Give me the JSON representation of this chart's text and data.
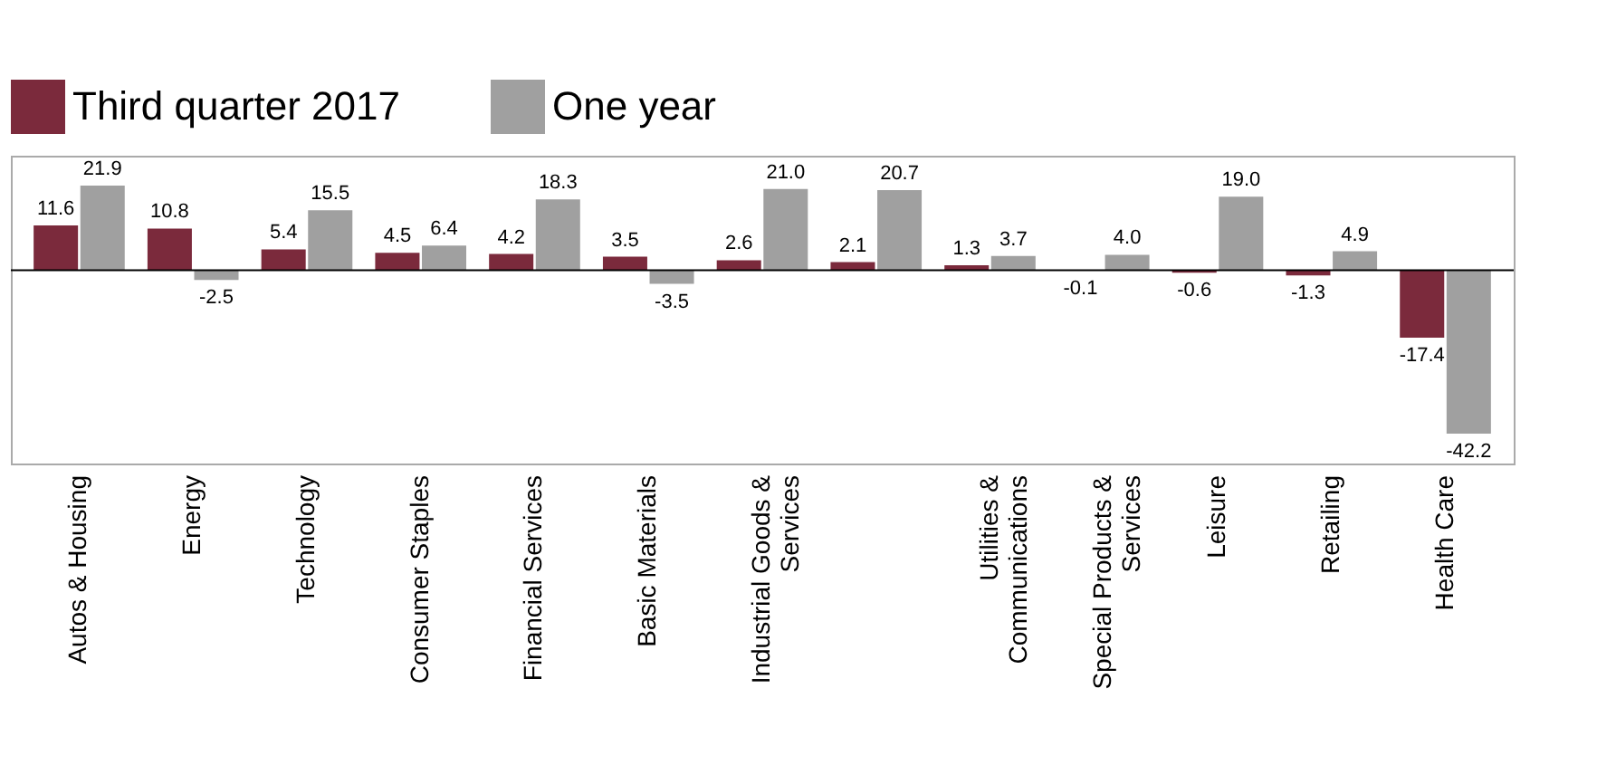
{
  "chart_data": {
    "type": "bar",
    "categories": [
      "Autos & Housing",
      "Energy",
      "Technology",
      "Consumer Staples",
      "Financial Services",
      "Basic Materials",
      "Industrial Goods & Services",
      null,
      "Utilities & Communications",
      "Special Products & Services",
      "Leisure",
      "Retailing",
      "Health Care"
    ],
    "series": [
      {
        "name": "Third quarter 2017",
        "color": "#7b2a3c",
        "values": [
          11.6,
          10.8,
          5.4,
          4.5,
          4.2,
          3.5,
          2.6,
          2.1,
          1.3,
          -0.1,
          -0.6,
          -1.3,
          -17.4
        ],
        "value_labels": [
          "11.6",
          "10.8",
          "5.4",
          "4.5",
          "4.2",
          "3.5",
          "2.6",
          "2.1",
          "1.3",
          "-0.1",
          "-0.6",
          "-1.3",
          "-17.4"
        ]
      },
      {
        "name": "One year",
        "color": "#a0a0a0",
        "values": [
          21.9,
          -2.5,
          15.5,
          6.4,
          18.3,
          -3.5,
          21.0,
          20.7,
          3.7,
          4.0,
          19.0,
          4.9,
          -42.2
        ],
        "value_labels": [
          "21.9",
          "-2.5",
          "15.5",
          "6.4",
          "18.3",
          "-3.5",
          "21.0",
          "20.7",
          "3.7",
          "4.0",
          "19.0",
          "4.9",
          "-42.2"
        ]
      }
    ],
    "legend": "top left",
    "grid": false
  }
}
